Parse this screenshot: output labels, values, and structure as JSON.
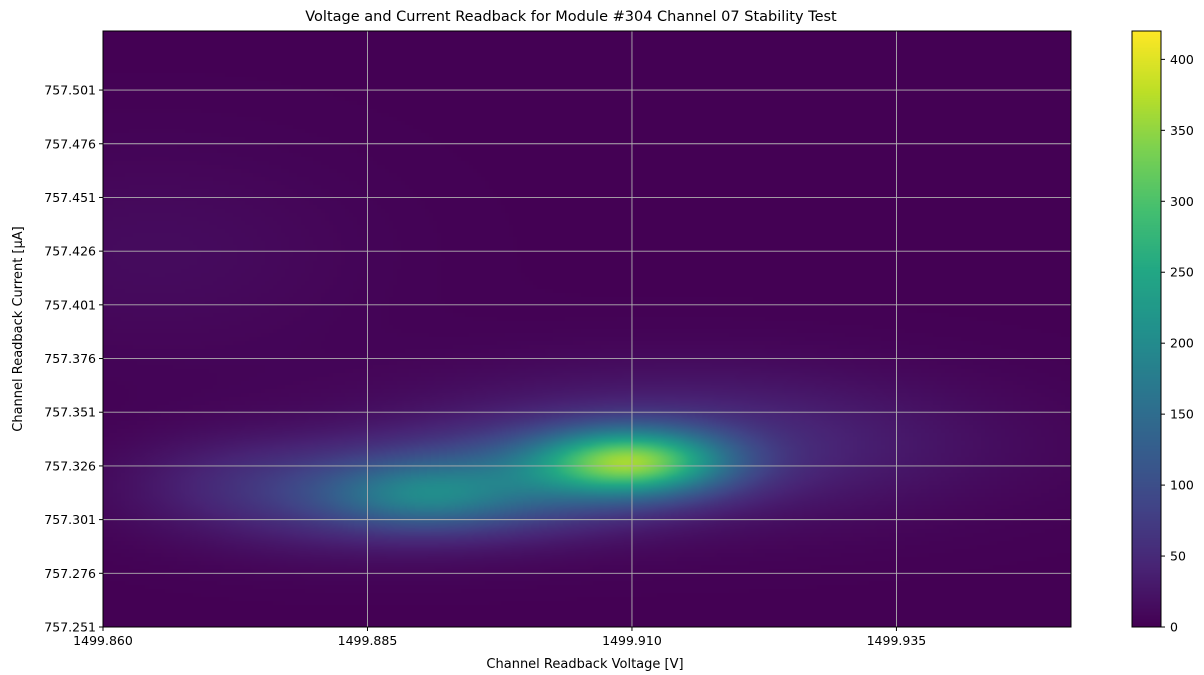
{
  "chart_data": {
    "type": "heatmap",
    "title": "Voltage and Current Readback for Module #304 Channel 07 Stability Test",
    "xlabel": "Channel Readback Voltage [V]",
    "ylabel": "Channel Readback Current [μA]",
    "xlim": [
      1499.86,
      1499.9515
    ],
    "ylim": [
      757.251,
      757.5285
    ],
    "x_ticks": [
      "1499.860",
      "1499.885",
      "1499.910",
      "1499.935"
    ],
    "x_tick_values": [
      1499.86,
      1499.885,
      1499.91,
      1499.935
    ],
    "y_ticks": [
      "757.251",
      "757.276",
      "757.301",
      "757.326",
      "757.351",
      "757.376",
      "757.401",
      "757.426",
      "757.451",
      "757.476",
      "757.501"
    ],
    "y_tick_values": [
      757.251,
      757.276,
      757.301,
      757.326,
      757.351,
      757.376,
      757.401,
      757.426,
      757.451,
      757.476,
      757.501
    ],
    "colormap": "viridis",
    "colorbar": {
      "min": 0,
      "max": 420,
      "ticks": [
        "0",
        "50",
        "100",
        "150",
        "200",
        "250",
        "300",
        "350",
        "400"
      ],
      "tick_values": [
        0,
        50,
        100,
        150,
        200,
        250,
        300,
        350,
        400
      ]
    },
    "density_components": [
      {
        "x": 1499.91,
        "y": 757.328,
        "sx": 0.0062,
        "sy": 0.0105,
        "amp": 275
      },
      {
        "x": 1499.898,
        "y": 757.318,
        "sx": 0.0105,
        "sy": 0.015,
        "amp": 85
      },
      {
        "x": 1499.89,
        "y": 757.312,
        "sx": 0.006,
        "sy": 0.01,
        "amp": 80
      },
      {
        "x": 1499.884,
        "y": 757.31,
        "sx": 0.012,
        "sy": 0.0165,
        "amp": 55
      },
      {
        "x": 1499.915,
        "y": 757.336,
        "sx": 0.018,
        "sy": 0.023,
        "amp": 55
      },
      {
        "x": 1499.873,
        "y": 757.322,
        "sx": 0.008,
        "sy": 0.015,
        "amp": 22
      },
      {
        "x": 1499.865,
        "y": 757.425,
        "sx": 0.014,
        "sy": 0.035,
        "amp": 12
      }
    ],
    "grid": true
  }
}
